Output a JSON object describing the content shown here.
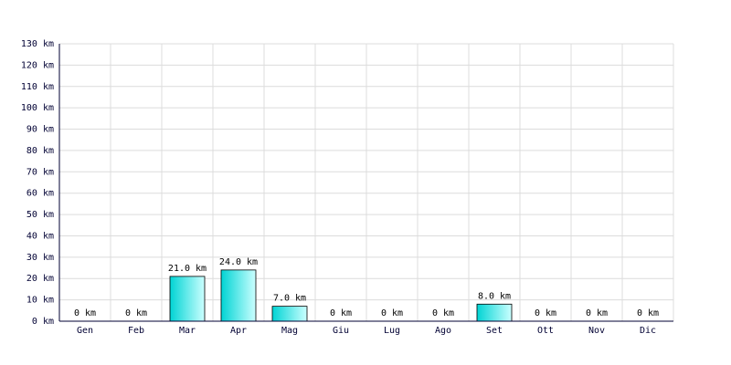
{
  "chart_data": {
    "type": "bar",
    "categories": [
      "Gen",
      "Feb",
      "Mar",
      "Apr",
      "Mag",
      "Giu",
      "Lug",
      "Ago",
      "Set",
      "Ott",
      "Nov",
      "Dic"
    ],
    "values": [
      0,
      0,
      21.0,
      24.0,
      7.0,
      0,
      0,
      0,
      8.0,
      0,
      0,
      0
    ],
    "value_labels": [
      "0 km",
      "0 km",
      "21.0 km",
      "24.0 km",
      "7.0 km",
      "0 km",
      "0 km",
      "0 km",
      "8.0 km",
      "0 km",
      "0 km",
      "0 km"
    ],
    "color": "#00d4d4",
    "ylim": [
      0,
      130
    ],
    "yticks": [
      {
        "value": 0,
        "label": "0 km"
      },
      {
        "value": 10,
        "label": "10 km"
      },
      {
        "value": 20,
        "label": "20 km"
      },
      {
        "value": 30,
        "label": "30 km"
      },
      {
        "value": 40,
        "label": "40 km"
      },
      {
        "value": 50,
        "label": "50 km"
      },
      {
        "value": 60,
        "label": "60 km"
      },
      {
        "value": 70,
        "label": "70 km"
      },
      {
        "value": 80,
        "label": "80 km"
      },
      {
        "value": 90,
        "label": "90 km"
      },
      {
        "value": 100,
        "label": "100 km"
      },
      {
        "value": 110,
        "label": "110 km"
      },
      {
        "value": 120,
        "label": "120 km"
      },
      {
        "value": 130,
        "label": "130 km"
      }
    ],
    "grid": true
  }
}
